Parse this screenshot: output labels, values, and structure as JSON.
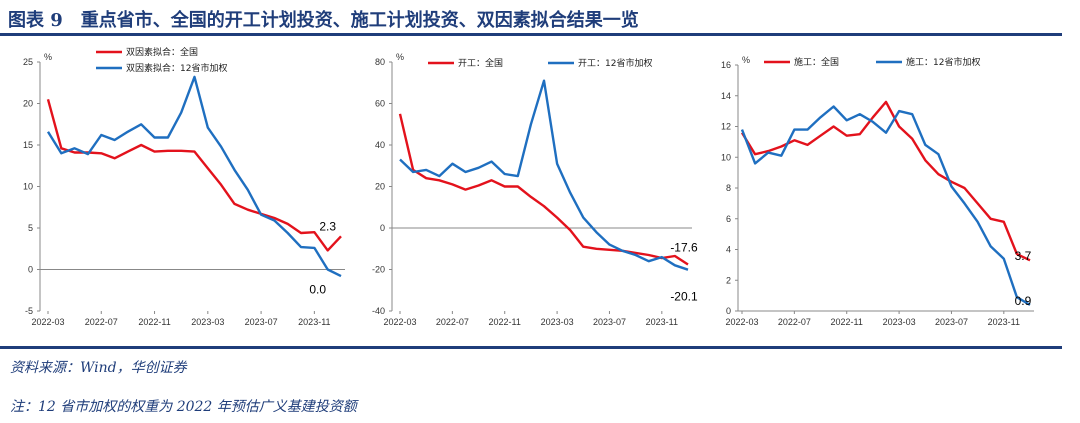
{
  "figure": {
    "title": "图表 9　重点省市、全国的开工计划投资、施工计划投资、双因素拟合结果一览",
    "source": "资料来源：Wind，华创证券",
    "note": "注：12 省市加权的权重为 2022 年预估广义基建投资额"
  },
  "colors": {
    "national": "#e3121c",
    "weighted": "#1f6fc0",
    "title": "#1f3d7a"
  },
  "chart_data": [
    {
      "type": "line",
      "unit_label": "%",
      "ylim": [
        -5,
        25
      ],
      "yticks": [
        -5,
        0,
        5,
        10,
        15,
        20,
        25
      ],
      "x_tick_labels": [
        "2022-03",
        "2022-07",
        "2022-11",
        "2023-03",
        "2023-07",
        "2023-11"
      ],
      "legend_position": "top-left",
      "series": [
        {
          "name": "双因素拟合：全国",
          "color": "#e3121c",
          "x": [
            0,
            1,
            2,
            3,
            4,
            5,
            6,
            7,
            8,
            9,
            10,
            11,
            12,
            13,
            14,
            15,
            16,
            17,
            18,
            19,
            20,
            21,
            22
          ],
          "values": [
            20.5,
            14.6,
            14.1,
            14.1,
            14.0,
            13.4,
            14.2,
            15.0,
            14.2,
            14.3,
            14.3,
            14.2,
            12.2,
            10.2,
            7.9,
            7.2,
            6.7,
            6.2,
            5.5,
            4.4,
            4.5,
            2.3,
            4.0
          ]
        },
        {
          "name": "双因素拟合：12省市加权",
          "color": "#1f6fc0",
          "x": [
            0,
            1,
            2,
            3,
            4,
            5,
            6,
            7,
            8,
            9,
            10,
            11,
            12,
            13,
            14,
            15,
            16,
            17,
            18,
            19,
            20,
            21,
            22
          ],
          "values": [
            16.6,
            14.0,
            14.6,
            13.9,
            16.2,
            15.6,
            16.6,
            17.5,
            15.9,
            15.9,
            18.9,
            23.2,
            17.1,
            14.8,
            12.0,
            9.6,
            6.6,
            5.9,
            4.4,
            2.7,
            2.6,
            0.0,
            -0.8
          ]
        }
      ],
      "annotations": [
        {
          "text": "2.3",
          "x": 21,
          "y": 2.3,
          "dx": 0,
          "dy": -20
        },
        {
          "text": "0.0",
          "x": 21,
          "y": 0.0,
          "dx": -10,
          "dy": 24
        }
      ]
    },
    {
      "type": "line",
      "unit_label": "%",
      "ylim": [
        -40,
        80
      ],
      "yticks": [
        -40,
        -20,
        0,
        20,
        40,
        60,
        80
      ],
      "x_tick_labels": [
        "2022-03",
        "2022-07",
        "2022-11",
        "2023-03",
        "2023-07",
        "2023-11"
      ],
      "legend_position": "top",
      "series": [
        {
          "name": "开工：全国",
          "color": "#e3121c",
          "x": [
            0,
            1,
            2,
            3,
            4,
            5,
            6,
            7,
            8,
            9,
            10,
            11,
            12,
            13,
            14,
            15,
            16,
            17,
            18,
            19,
            20,
            21,
            22
          ],
          "values": [
            55,
            28,
            24,
            23,
            21,
            18.5,
            20.5,
            23,
            20,
            20,
            15,
            10.5,
            5,
            -1,
            -9,
            -10,
            -10.5,
            -11,
            -12,
            -13,
            -14.5,
            -13.5,
            -17.6
          ]
        },
        {
          "name": "开工：12省市加权",
          "color": "#1f6fc0",
          "x": [
            0,
            1,
            2,
            3,
            4,
            5,
            6,
            7,
            8,
            9,
            10,
            11,
            12,
            13,
            14,
            15,
            16,
            17,
            18,
            19,
            20,
            21,
            22
          ],
          "values": [
            33,
            27,
            28,
            25,
            31,
            27,
            29,
            32,
            26,
            25,
            50,
            71,
            31,
            17,
            5,
            -2,
            -8,
            -11,
            -13,
            -16,
            -14,
            -18,
            -20.1
          ]
        }
      ],
      "annotations": [
        {
          "text": "-17.6",
          "x": 22,
          "y": -17.6,
          "dx": -4,
          "dy": -13
        },
        {
          "text": "-20.1",
          "x": 22,
          "y": -20.1,
          "dx": -4,
          "dy": 31
        }
      ]
    },
    {
      "type": "line",
      "unit_label": "%",
      "ylim": [
        0,
        16
      ],
      "yticks": [
        0,
        2,
        4,
        6,
        8,
        10,
        12,
        14,
        16
      ],
      "x_tick_labels": [
        "2022-03",
        "2022-07",
        "2022-11",
        "2023-03",
        "2023-07",
        "2023-11"
      ],
      "legend_position": "top",
      "series": [
        {
          "name": "施工：全国",
          "color": "#e3121c",
          "x": [
            0,
            1,
            2,
            3,
            4,
            5,
            6,
            7,
            8,
            9,
            10,
            11,
            12,
            13,
            14,
            15,
            16,
            17,
            18,
            19,
            20,
            21,
            22
          ],
          "values": [
            11.6,
            10.2,
            10.4,
            10.7,
            11.1,
            10.8,
            11.4,
            12.0,
            11.4,
            11.5,
            12.6,
            13.6,
            12.0,
            11.2,
            9.8,
            8.9,
            8.4,
            8.0,
            7.0,
            6.0,
            5.8,
            3.7,
            3.3
          ]
        },
        {
          "name": "施工：12省市加权",
          "color": "#1f6fc0",
          "x": [
            0,
            1,
            2,
            3,
            4,
            5,
            6,
            7,
            8,
            9,
            10,
            11,
            12,
            13,
            14,
            15,
            16,
            17,
            18,
            19,
            20,
            21,
            22
          ],
          "values": [
            11.8,
            9.6,
            10.3,
            10.1,
            11.8,
            11.8,
            12.6,
            13.3,
            12.4,
            12.8,
            12.3,
            11.6,
            13.0,
            12.8,
            10.8,
            10.2,
            8.1,
            7.0,
            5.8,
            4.2,
            3.4,
            0.9,
            0.4
          ]
        }
      ],
      "annotations": [
        {
          "text": "3.7",
          "x": 21,
          "y": 3.7,
          "dx": 6,
          "dy": 6
        },
        {
          "text": "0.9",
          "x": 21,
          "y": 0.9,
          "dx": 6,
          "dy": 8
        }
      ]
    }
  ]
}
